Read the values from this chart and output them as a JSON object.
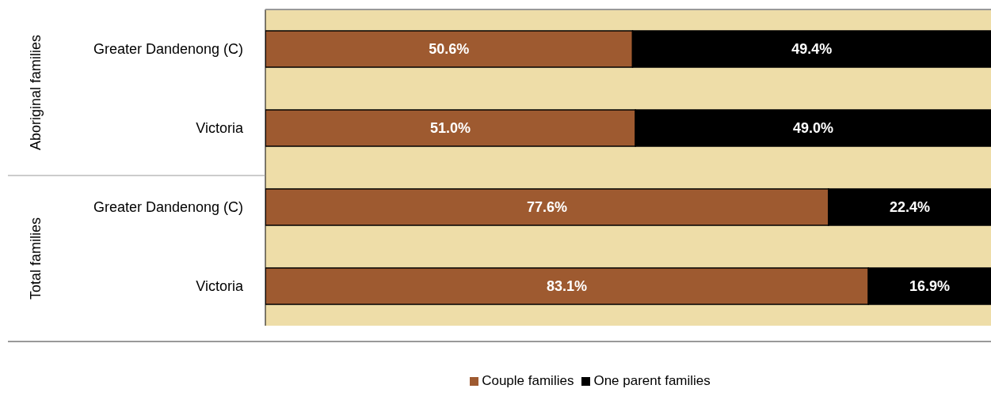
{
  "chart_data": {
    "type": "bar",
    "orientation": "horizontal",
    "stacked": true,
    "categories": [
      "Greater Dandenong (C)",
      "Victoria",
      "Greater Dandenong (C)",
      "Victoria"
    ],
    "annotations": [
      "Aboriginal families",
      "Total families"
    ],
    "xlim": [
      0,
      100
    ],
    "tick_labels": "y",
    "legend": "bottom",
    "grid": false,
    "series": [
      {
        "name": "Couple families",
        "color": "#9e5a30",
        "values": [
          50.6,
          51.0,
          77.6,
          83.1
        ],
        "value_labels": [
          "50.6%",
          "51.0%",
          "77.6%",
          "83.1%"
        ]
      },
      {
        "name": "One parent families",
        "color": "#000000",
        "values": [
          49.4,
          49.0,
          22.4,
          16.9
        ],
        "value_labels": [
          "49.4%",
          "49.0%",
          "22.4%",
          "16.9%"
        ]
      }
    ]
  }
}
